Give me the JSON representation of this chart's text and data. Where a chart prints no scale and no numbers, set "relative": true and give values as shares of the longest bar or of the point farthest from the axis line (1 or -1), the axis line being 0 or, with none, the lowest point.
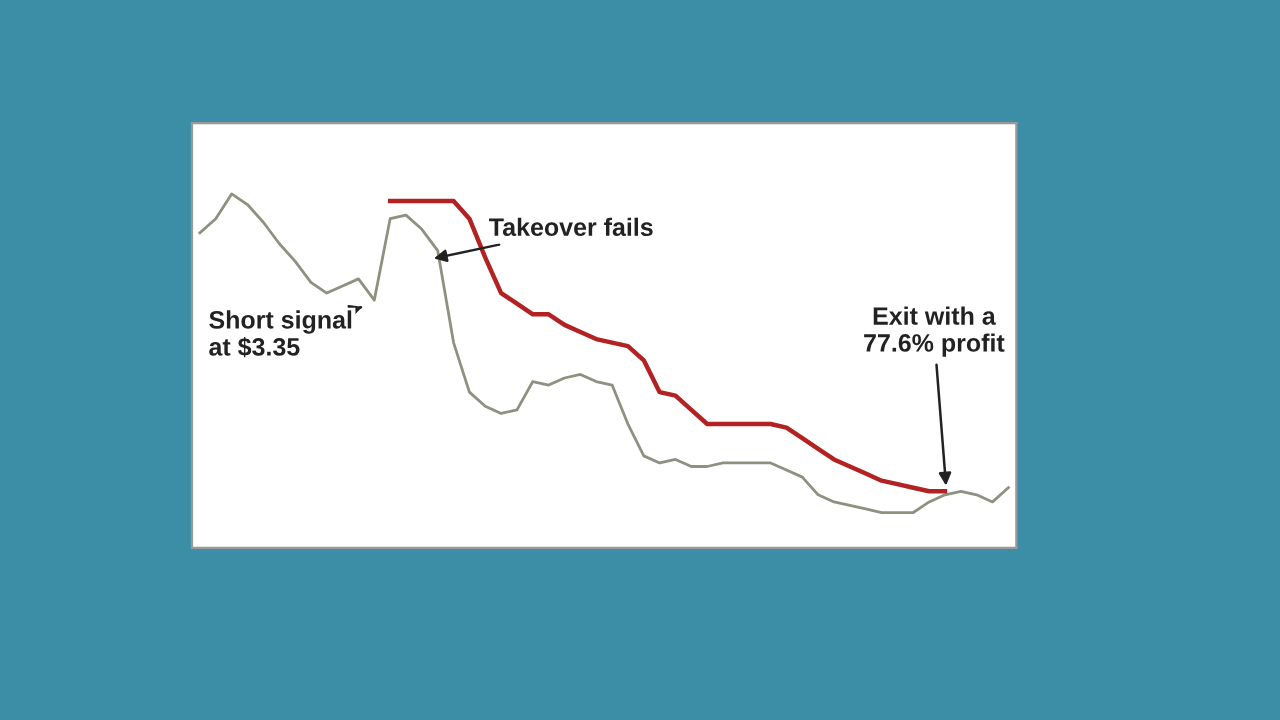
{
  "chart_data": {
    "type": "line",
    "relative": true,
    "marker": "none",
    "line_style": "solid",
    "categories": [
      null,
      null,
      null,
      null,
      null,
      null,
      null,
      null,
      null,
      null,
      null,
      null,
      null,
      null,
      null,
      null,
      null,
      null,
      null,
      null,
      null,
      null,
      null,
      null,
      null,
      null,
      null,
      null,
      null,
      null,
      null,
      null,
      null,
      null,
      null,
      null,
      null,
      null,
      null,
      null,
      null,
      null,
      null,
      null,
      null,
      null,
      null,
      null,
      null,
      null,
      null,
      null
    ],
    "series": [
      {
        "color": "#8c9180",
        "values": [
          0.89,
          0.93,
          1.0,
          0.97,
          0.92,
          0.86,
          0.81,
          0.75,
          0.72,
          0.74,
          0.76,
          0.7,
          0.93,
          0.94,
          0.9,
          0.84,
          0.58,
          0.44,
          0.4,
          0.38,
          0.39,
          0.47,
          0.46,
          0.48,
          0.49,
          0.47,
          0.46,
          0.35,
          0.26,
          0.24,
          0.25,
          0.23,
          0.23,
          0.24,
          0.24,
          0.24,
          0.24,
          0.22,
          0.2,
          0.15,
          0.13,
          0.12,
          0.11,
          0.1,
          0.1,
          0.1,
          0.13,
          0.15,
          0.16,
          0.15,
          0.13,
          0.17
        ]
      },
      {
        "color": "#b22222",
        "values": [
          null,
          null,
          null,
          null,
          null,
          null,
          null,
          null,
          null,
          null,
          null,
          null,
          0.98,
          0.98,
          0.98,
          0.98,
          0.98,
          0.93,
          0.82,
          0.72,
          0.69,
          0.66,
          0.66,
          0.63,
          0.61,
          0.59,
          0.58,
          0.57,
          0.53,
          0.44,
          0.43,
          0.39,
          0.35,
          0.35,
          0.35,
          0.35,
          0.35,
          0.34,
          0.31,
          0.28,
          0.25,
          0.23,
          0.21,
          0.19,
          0.18,
          0.17,
          0.16,
          0.16,
          null,
          null,
          null,
          null
        ]
      }
    ],
    "annotations": [
      "Short signal\nat $3.35",
      "Takeover fails",
      "Exit with a\n77.6% profit"
    ]
  }
}
